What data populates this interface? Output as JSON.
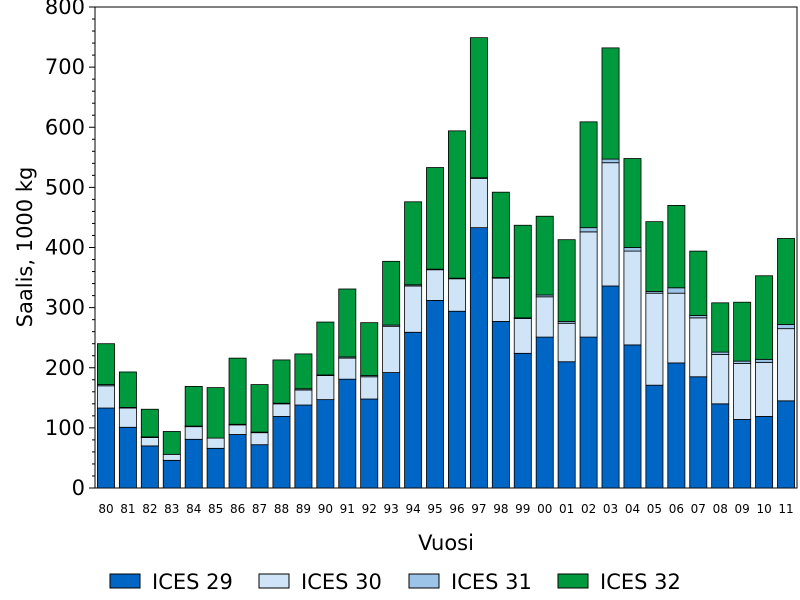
{
  "chart_data": {
    "type": "bar",
    "stacked": true,
    "xlabel": "Vuosi",
    "ylabel": "Saalis, 1000 kg",
    "ylim": [
      0,
      800
    ],
    "yticks": [
      0,
      100,
      200,
      300,
      400,
      500,
      600,
      700,
      800
    ],
    "categories": [
      "80",
      "81",
      "82",
      "83",
      "84",
      "85",
      "86",
      "87",
      "88",
      "89",
      "90",
      "91",
      "92",
      "93",
      "94",
      "95",
      "96",
      "97",
      "98",
      "99",
      "00",
      "01",
      "02",
      "03",
      "04",
      "05",
      "06",
      "07",
      "08",
      "09",
      "10",
      "11"
    ],
    "legend_position": "bottom",
    "series": [
      {
        "name": "ICES 29",
        "color": "#0066c6",
        "values": [
          133,
          101,
          70,
          46,
          81,
          66,
          89,
          72,
          119,
          138,
          147,
          181,
          148,
          192,
          259,
          312,
          294,
          433,
          277,
          224,
          251,
          210,
          251,
          336,
          238,
          171,
          208,
          185,
          140,
          114,
          119,
          145
        ]
      },
      {
        "name": "ICES 30",
        "color": "#cfe4f7",
        "values": [
          37,
          32,
          14,
          10,
          21,
          17,
          16,
          20,
          21,
          25,
          40,
          35,
          37,
          77,
          77,
          51,
          54,
          82,
          72,
          58,
          67,
          64,
          175,
          205,
          156,
          153,
          116,
          98,
          82,
          93,
          90,
          120
        ]
      },
      {
        "name": "ICES 31",
        "color": "#9cc4e8",
        "values": [
          2,
          1,
          1,
          0,
          1,
          0,
          1,
          1,
          1,
          2,
          1,
          2,
          2,
          2,
          2,
          1,
          1,
          1,
          1,
          1,
          3,
          3,
          7,
          6,
          6,
          3,
          9,
          4,
          4,
          4,
          5,
          7
        ]
      },
      {
        "name": "ICES 32",
        "color": "#009a3e",
        "values": [
          68,
          59,
          46,
          38,
          66,
          84,
          110,
          79,
          72,
          58,
          88,
          113,
          88,
          106,
          138,
          169,
          245,
          233,
          142,
          154,
          131,
          136,
          176,
          185,
          148,
          116,
          137,
          107,
          82,
          98,
          139,
          143
        ]
      }
    ]
  }
}
